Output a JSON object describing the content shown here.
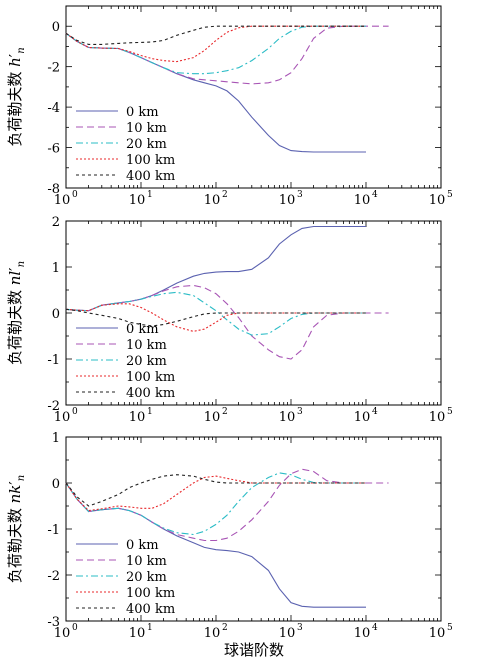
{
  "colors": {
    "0 km": "#5b62b0",
    "10 km": "#a855b5",
    "20 km": "#2bbcc6",
    "100 km": "#e8282b",
    "400 km": "#222222"
  },
  "shared_x": {
    "xlabel": "球谐阶数",
    "scale": "log10",
    "xlim": [
      1,
      100000
    ],
    "tick_labels": [
      "10",
      "10",
      "10",
      "10",
      "10",
      "10"
    ],
    "tick_exponents": [
      "0",
      "1",
      "2",
      "3",
      "4",
      "5"
    ],
    "x": [
      1,
      1.4,
      2,
      3,
      5,
      7,
      10,
      14,
      20,
      30,
      50,
      70,
      100,
      140,
      200,
      300,
      500,
      700,
      1000,
      1400,
      2000,
      3000,
      5000,
      7000,
      10000,
      20000
    ]
  },
  "chart_data": [
    {
      "type": "line",
      "ylabel": "负荷勒夫数 h′",
      "ylabel_parts": {
        "main": "负荷勒夫数 ",
        "var": "h",
        "prime": "′",
        "sub": "n"
      },
      "ylim": [
        -8,
        1
      ],
      "yticks": [
        "-8",
        "-6",
        "-4",
        "-2",
        "0"
      ],
      "ytick_values": [
        -8,
        -6,
        -4,
        -2,
        0
      ],
      "legend": "lower-left",
      "series": [
        {
          "name": "0 km",
          "dash": "solid",
          "values": [
            -0.35,
            -0.75,
            -1.05,
            -1.08,
            -1.1,
            -1.3,
            -1.55,
            -1.8,
            -2.05,
            -2.35,
            -2.65,
            -2.8,
            -2.95,
            -3.2,
            -3.7,
            -4.5,
            -5.4,
            -5.9,
            -6.15,
            -6.2,
            -6.22,
            -6.22,
            -6.22,
            -6.22,
            -6.22,
            null
          ]
        },
        {
          "name": "10 km",
          "dash": "longdash",
          "values": [
            -0.35,
            -0.75,
            -1.05,
            -1.08,
            -1.1,
            -1.3,
            -1.55,
            -1.8,
            -2.05,
            -2.35,
            -2.6,
            -2.65,
            -2.7,
            -2.75,
            -2.8,
            -2.85,
            -2.8,
            -2.65,
            -2.3,
            -1.6,
            -0.6,
            -0.1,
            0,
            0,
            0,
            0
          ]
        },
        {
          "name": "20 km",
          "dash": "dashdot",
          "values": [
            -0.35,
            -0.75,
            -1.05,
            -1.08,
            -1.1,
            -1.3,
            -1.55,
            -1.8,
            -2.05,
            -2.3,
            -2.35,
            -2.35,
            -2.3,
            -2.2,
            -2.05,
            -1.7,
            -1.1,
            -0.6,
            -0.25,
            -0.05,
            0,
            0,
            0,
            0,
            0,
            null
          ]
        },
        {
          "name": "100 km",
          "dash": "dotted",
          "values": [
            -0.35,
            -0.75,
            -1.05,
            -1.08,
            -1.1,
            -1.25,
            -1.45,
            -1.6,
            -1.7,
            -1.75,
            -1.55,
            -1.2,
            -0.7,
            -0.3,
            -0.08,
            0,
            0,
            0,
            0,
            0,
            0,
            0,
            0,
            0,
            0,
            null
          ]
        },
        {
          "name": "400 km",
          "dash": "shortdash",
          "values": [
            -0.35,
            -0.7,
            -0.9,
            -0.9,
            -0.85,
            -0.82,
            -0.8,
            -0.78,
            -0.7,
            -0.45,
            -0.2,
            -0.05,
            0,
            0,
            0,
            0,
            0,
            0,
            0,
            0,
            0,
            0,
            0,
            0,
            0,
            null
          ]
        }
      ]
    },
    {
      "type": "line",
      "ylabel": "负荷勒夫数 nl′",
      "ylabel_parts": {
        "main": "负荷勒夫数 ",
        "var": "nl",
        "prime": "′",
        "sub": "n"
      },
      "ylim": [
        -2,
        2
      ],
      "yticks": [
        "-2",
        "-1",
        "0",
        "1",
        "2"
      ],
      "ytick_values": [
        -2,
        -1,
        0,
        1,
        2
      ],
      "legend": "lower-left",
      "series": [
        {
          "name": "0 km",
          "dash": "solid",
          "values": [
            0.08,
            0.06,
            0.05,
            0.17,
            0.22,
            0.25,
            0.3,
            0.38,
            0.5,
            0.65,
            0.8,
            0.86,
            0.89,
            0.9,
            0.9,
            0.95,
            1.2,
            1.5,
            1.7,
            1.84,
            1.88,
            1.88,
            1.88,
            1.88,
            1.88,
            null
          ]
        },
        {
          "name": "10 km",
          "dash": "longdash",
          "values": [
            0.08,
            0.06,
            0.05,
            0.17,
            0.22,
            0.25,
            0.3,
            0.38,
            0.48,
            0.57,
            0.6,
            0.55,
            0.42,
            0.2,
            -0.1,
            -0.5,
            -0.8,
            -0.95,
            -1.0,
            -0.8,
            -0.3,
            -0.05,
            0,
            0,
            0,
            0
          ]
        },
        {
          "name": "20 km",
          "dash": "dashdot",
          "values": [
            0.08,
            0.06,
            0.05,
            0.17,
            0.22,
            0.25,
            0.3,
            0.36,
            0.42,
            0.45,
            0.38,
            0.22,
            0.05,
            -0.15,
            -0.35,
            -0.48,
            -0.45,
            -0.3,
            -0.12,
            -0.03,
            0,
            0,
            0,
            0,
            0,
            null
          ]
        },
        {
          "name": "100 km",
          "dash": "dotted",
          "values": [
            0.08,
            0.06,
            0.05,
            0.17,
            0.2,
            0.2,
            0.12,
            0,
            -0.15,
            -0.3,
            -0.4,
            -0.35,
            -0.2,
            -0.05,
            0,
            0,
            0,
            0,
            0,
            0,
            0,
            0,
            0,
            0,
            0,
            null
          ]
        },
        {
          "name": "400 km",
          "dash": "shortdash",
          "values": [
            0.08,
            0.05,
            0.0,
            -0.05,
            -0.12,
            -0.2,
            -0.25,
            -0.28,
            -0.25,
            -0.18,
            -0.08,
            -0.02,
            0,
            0,
            0,
            0,
            0,
            0,
            0,
            0,
            0,
            0,
            0,
            0,
            0,
            null
          ]
        }
      ]
    },
    {
      "type": "line",
      "ylabel": "负荷勒夫数 nk′",
      "ylabel_parts": {
        "main": "负荷勒夫数 ",
        "var": "nk",
        "prime": "′",
        "sub": "n"
      },
      "ylim": [
        -3,
        1
      ],
      "yticks": [
        "-3",
        "-2",
        "-1",
        "0",
        "1"
      ],
      "ytick_values": [
        -3,
        -2,
        -1,
        0,
        1
      ],
      "legend": "lower-left",
      "series": [
        {
          "name": "0 km",
          "dash": "solid",
          "values": [
            0.0,
            -0.35,
            -0.62,
            -0.58,
            -0.55,
            -0.6,
            -0.7,
            -0.85,
            -1.0,
            -1.15,
            -1.3,
            -1.4,
            -1.45,
            -1.47,
            -1.5,
            -1.6,
            -1.9,
            -2.3,
            -2.6,
            -2.68,
            -2.7,
            -2.7,
            -2.7,
            -2.7,
            -2.7,
            null
          ]
        },
        {
          "name": "10 km",
          "dash": "longdash",
          "values": [
            0.0,
            -0.35,
            -0.62,
            -0.58,
            -0.55,
            -0.6,
            -0.7,
            -0.85,
            -1.0,
            -1.12,
            -1.2,
            -1.25,
            -1.25,
            -1.2,
            -1.05,
            -0.8,
            -0.4,
            -0.05,
            0.2,
            0.3,
            0.25,
            0.05,
            0,
            0,
            0,
            0
          ]
        },
        {
          "name": "20 km",
          "dash": "dashdot",
          "values": [
            0.0,
            -0.35,
            -0.62,
            -0.58,
            -0.55,
            -0.6,
            -0.7,
            -0.85,
            -0.98,
            -1.08,
            -1.12,
            -1.05,
            -0.9,
            -0.7,
            -0.4,
            -0.1,
            0.12,
            0.22,
            0.18,
            0.08,
            0.01,
            0,
            0,
            0,
            0,
            null
          ]
        },
        {
          "name": "100 km",
          "dash": "dotted",
          "values": [
            0.0,
            -0.35,
            -0.6,
            -0.56,
            -0.5,
            -0.52,
            -0.55,
            -0.55,
            -0.45,
            -0.25,
            0.0,
            0.12,
            0.15,
            0.1,
            0.05,
            0,
            0,
            0,
            0,
            0,
            0,
            0,
            0,
            0,
            0,
            null
          ]
        },
        {
          "name": "400 km",
          "dash": "shortdash",
          "values": [
            0.0,
            -0.3,
            -0.5,
            -0.4,
            -0.25,
            -0.1,
            0.0,
            0.08,
            0.15,
            0.18,
            0.15,
            0.08,
            0.02,
            0,
            0,
            0,
            0,
            0,
            0,
            0,
            0,
            0,
            0,
            0,
            0,
            null
          ]
        }
      ]
    }
  ]
}
